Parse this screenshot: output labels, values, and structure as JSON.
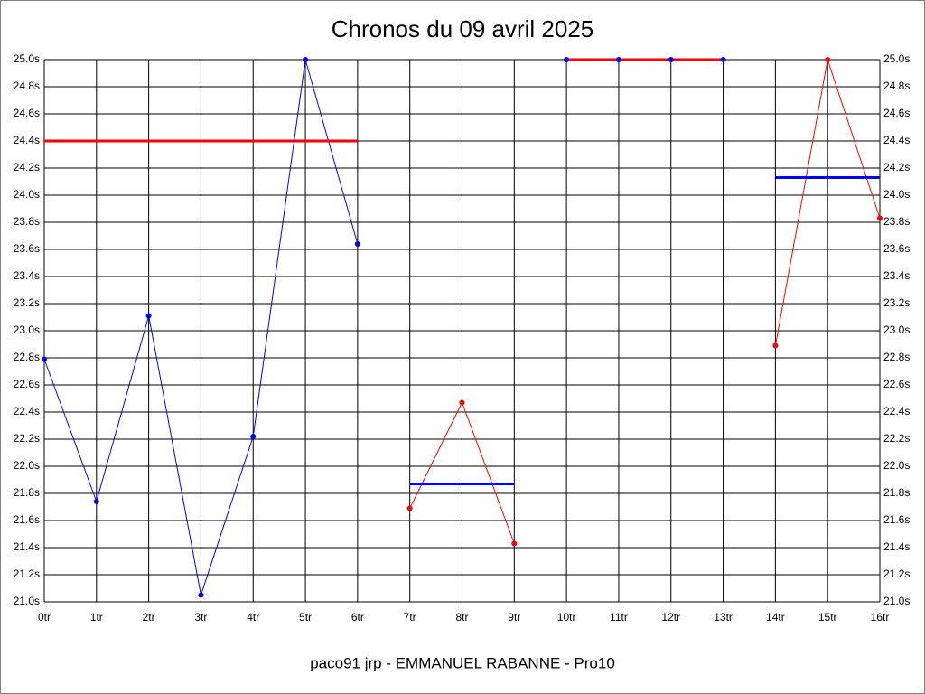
{
  "chart_data": {
    "type": "line",
    "title": "Chronos du 09 avril 2025",
    "footer": "paco91 jrp - EMMANUEL RABANNE - Pro10",
    "xlim": [
      0,
      16
    ],
    "xticks": [
      {
        "value": 0,
        "label": "0tr"
      },
      {
        "value": 1,
        "label": "1tr"
      },
      {
        "value": 2,
        "label": "2tr"
      },
      {
        "value": 3,
        "label": "3tr"
      },
      {
        "value": 4,
        "label": "4tr"
      },
      {
        "value": 5,
        "label": "5tr"
      },
      {
        "value": 6,
        "label": "6tr"
      },
      {
        "value": 7,
        "label": "7tr"
      },
      {
        "value": 8,
        "label": "8tr"
      },
      {
        "value": 9,
        "label": "9tr"
      },
      {
        "value": 10,
        "label": "10tr"
      },
      {
        "value": 11,
        "label": "11tr"
      },
      {
        "value": 12,
        "label": "12tr"
      },
      {
        "value": 13,
        "label": "13tr"
      },
      {
        "value": 14,
        "label": "14tr"
      },
      {
        "value": 15,
        "label": "15tr"
      },
      {
        "value": 16,
        "label": "16tr"
      }
    ],
    "ylim": [
      21.0,
      25.0
    ],
    "yticks": [
      {
        "value": 21.0,
        "label": "21.0s"
      },
      {
        "value": 21.2,
        "label": "21.2s"
      },
      {
        "value": 21.4,
        "label": "21.4s"
      },
      {
        "value": 21.6,
        "label": "21.6s"
      },
      {
        "value": 21.8,
        "label": "21.8s"
      },
      {
        "value": 22.0,
        "label": "22.0s"
      },
      {
        "value": 22.2,
        "label": "22.2s"
      },
      {
        "value": 22.4,
        "label": "22.4s"
      },
      {
        "value": 22.6,
        "label": "22.6s"
      },
      {
        "value": 22.8,
        "label": "22.8s"
      },
      {
        "value": 23.0,
        "label": "23.0s"
      },
      {
        "value": 23.2,
        "label": "23.2s"
      },
      {
        "value": 23.4,
        "label": "23.4s"
      },
      {
        "value": 23.6,
        "label": "23.6s"
      },
      {
        "value": 23.8,
        "label": "23.8s"
      },
      {
        "value": 24.0,
        "label": "24.0s"
      },
      {
        "value": 24.2,
        "label": "24.2s"
      },
      {
        "value": 24.4,
        "label": "24.4s"
      },
      {
        "value": 24.6,
        "label": "24.6s"
      },
      {
        "value": 24.8,
        "label": "24.8s"
      },
      {
        "value": 25.0,
        "label": "25.0s"
      }
    ],
    "grid": true,
    "series": [
      {
        "color": "#0000ff",
        "x": [
          0,
          1,
          2,
          3,
          4,
          5,
          6
        ],
        "values": [
          22.79,
          21.74,
          23.11,
          21.05,
          22.22,
          25.0,
          23.64
        ]
      },
      {
        "color": "#ff0000",
        "x": [
          7,
          8,
          9
        ],
        "values": [
          21.69,
          22.47,
          21.43
        ]
      },
      {
        "color": "#0000ff",
        "x": [
          10,
          11,
          12,
          13
        ],
        "values": [
          25.0,
          25.0,
          25.0,
          25.0
        ]
      },
      {
        "color": "#ff0000",
        "x": [
          14,
          15,
          16
        ],
        "values": [
          22.89,
          25.0,
          23.83
        ]
      }
    ],
    "averages": [
      {
        "color": "#ff0000",
        "x": [
          0,
          6
        ],
        "value": 24.4
      },
      {
        "color": "#0000ff",
        "x": [
          7,
          9
        ],
        "value": 21.87
      },
      {
        "color": "#ff0000",
        "x": [
          10,
          13
        ],
        "value": 25.0
      },
      {
        "color": "#0000ff",
        "x": [
          14,
          16
        ],
        "value": 24.13
      }
    ]
  }
}
